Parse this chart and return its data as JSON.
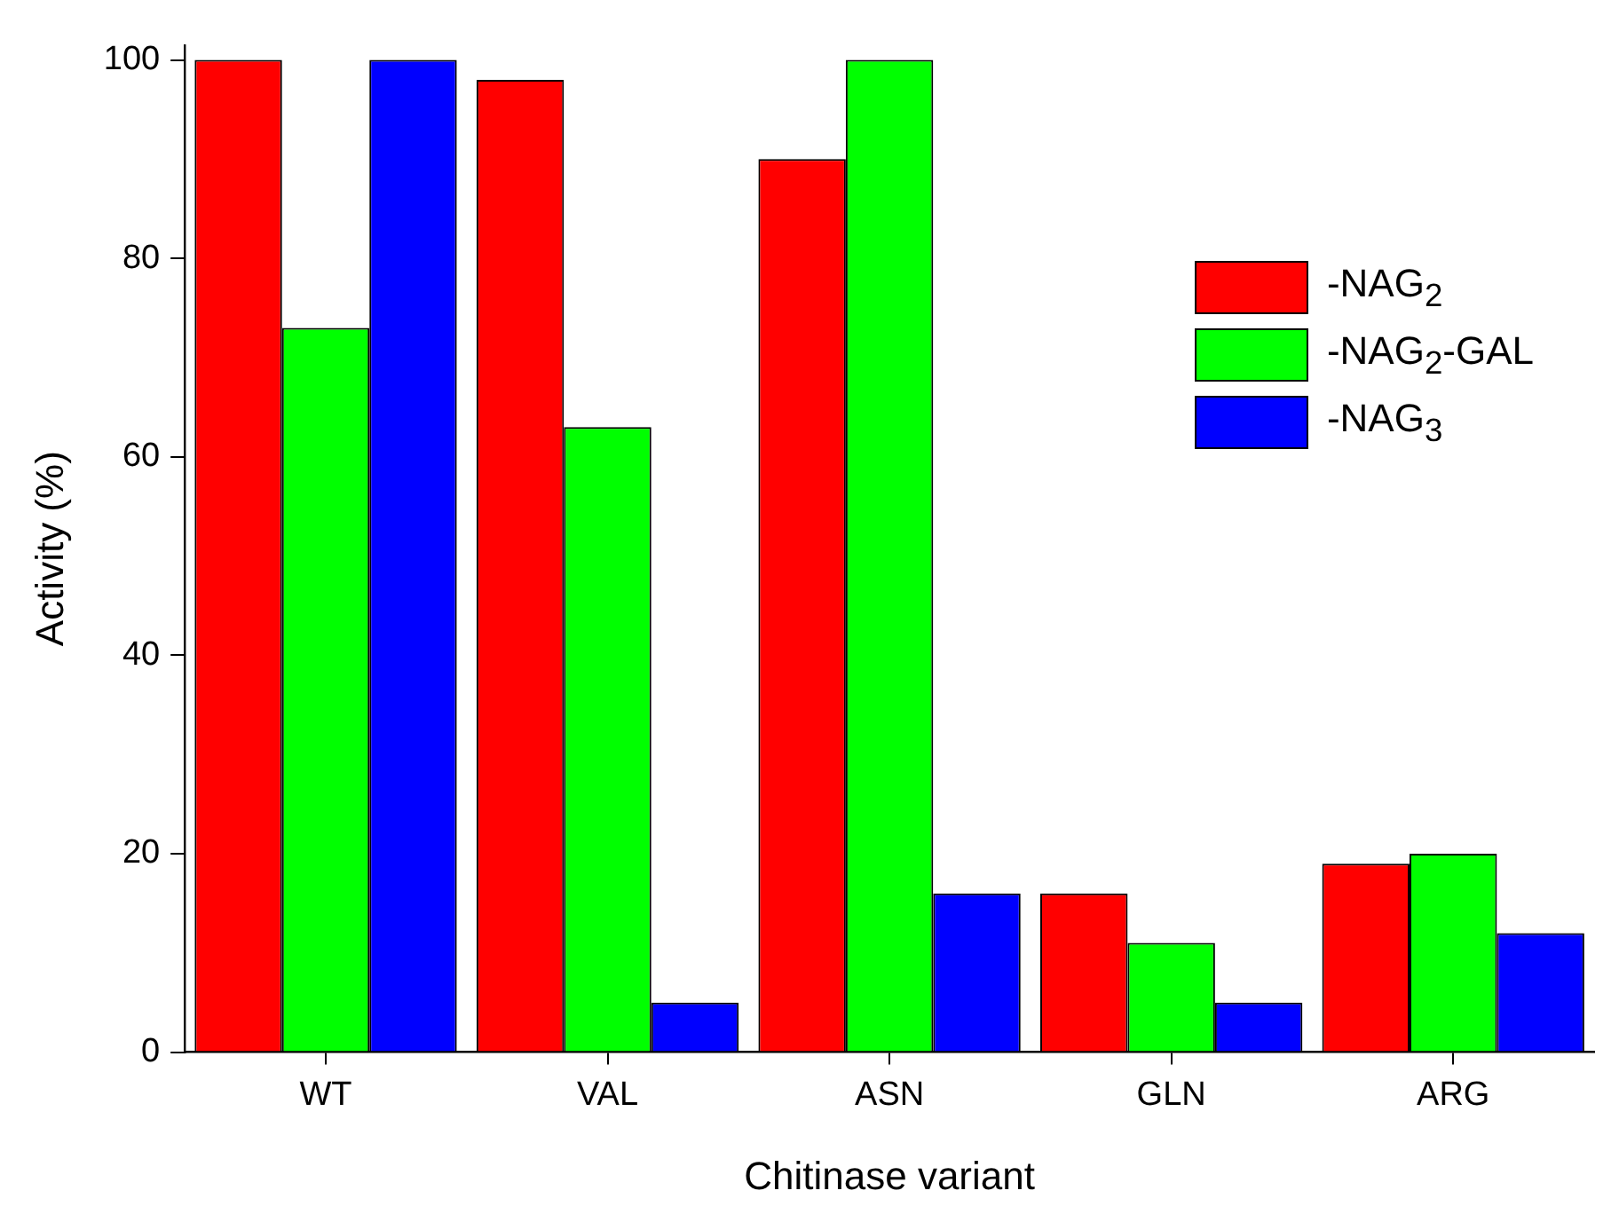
{
  "chart_data": {
    "type": "bar",
    "xlabel": "Chitinase variant",
    "ylabel": "Activity (%)",
    "categories": [
      "WT",
      "VAL",
      "ASN",
      "GLN",
      "ARG"
    ],
    "series": [
      {
        "name": "-NAG$_{2}$",
        "color": "#ff0000",
        "values": [
          100,
          98,
          90,
          16,
          19
        ]
      },
      {
        "name": "-NAG$_{2}$-GAL",
        "color": "#00ff00",
        "values": [
          73,
          63,
          100,
          11,
          20
        ]
      },
      {
        "name": "-NAG$_{3}$",
        "color": "#0000ff",
        "values": [
          100,
          5,
          16,
          5,
          12
        ]
      }
    ],
    "ylim": [
      0,
      101.5
    ],
    "yticks": [
      0,
      20,
      40,
      60,
      80,
      100
    ],
    "grid": false,
    "legend": "top right"
  }
}
